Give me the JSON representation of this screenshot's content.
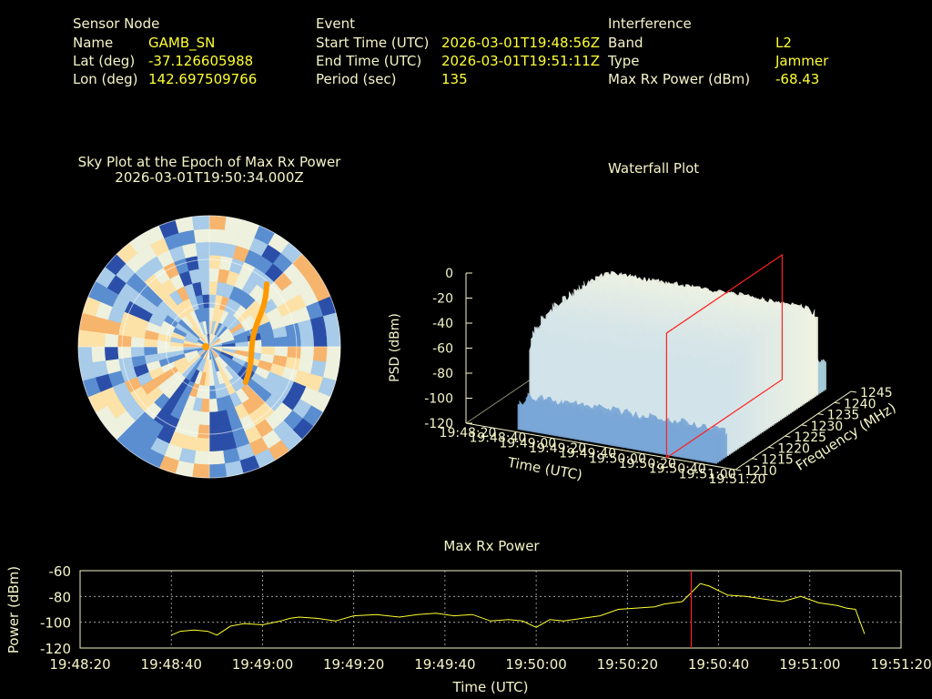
{
  "info": {
    "sensor": {
      "heading": "Sensor Node",
      "rows": [
        {
          "label": "Name",
          "value": "GAMB_SN"
        },
        {
          "label": "Lat (deg)",
          "value": "-37.126605988"
        },
        {
          "label": "Lon (deg)",
          "value": "142.697509766"
        }
      ]
    },
    "event": {
      "heading": "Event",
      "rows": [
        {
          "label": "Start Time (UTC)",
          "value": "2026-03-01T19:48:56Z"
        },
        {
          "label": "End Time (UTC)",
          "value": "2026-03-01T19:51:11Z"
        },
        {
          "label": "Period (sec)",
          "value": "135"
        }
      ]
    },
    "interference": {
      "heading": "Interference",
      "rows": [
        {
          "label": "Band",
          "value": "L2"
        },
        {
          "label": "Type",
          "value": "Jammer"
        },
        {
          "label": "Max Rx Power (dBm)",
          "value": "-68.43"
        }
      ]
    }
  },
  "colors": {
    "background": "#000000",
    "text": "#f5f5c8",
    "value": "#ffff33",
    "trace": "#ffff33",
    "marker": "#ff2020",
    "track": "#ff9900"
  },
  "chart_data": [
    {
      "type": "heatmap",
      "title": "Sky Plot at the Epoch of Max Rx Power",
      "subtitle": "2026-03-01T19:50:34.000Z",
      "projection": "polar",
      "colormap": [
        "#2b4fa8",
        "#5b8ed0",
        "#a7cbe8",
        "#eef1dd",
        "#fde2a8",
        "#f7b46c"
      ],
      "highlight_track_color": "#ff9900"
    },
    {
      "type": "area",
      "title": "Waterfall Plot",
      "zlabel": "PSD (dBm)",
      "xlabel": "Time (UTC)",
      "ylabel": "Frequency (MHz)",
      "z_ticks": [
        "0",
        "-20",
        "-40",
        "-60",
        "-80",
        "-100",
        "-120"
      ],
      "zlim": [
        -120,
        0
      ],
      "time_ticks": [
        "19:48:20",
        "19:48:40",
        "19:49:00",
        "19:49:20",
        "19:49:40",
        "19:50:00",
        "19:50:20",
        "19:50:40",
        "19:51:00",
        "19:51:20"
      ],
      "freq_ticks": [
        "1210",
        "1215",
        "1220",
        "1225",
        "1230",
        "1235",
        "1240",
        "1245"
      ],
      "freq_lim": [
        1210,
        1245
      ],
      "marker_time": "19:50:34",
      "plateau_freq": [
        1214,
        1242
      ],
      "plateau_psd": -25,
      "floor_psd": -95
    },
    {
      "type": "line",
      "title": "Max Rx Power",
      "xlabel": "Time (UTC)",
      "ylabel": "Power (dBm)",
      "x_ticks": [
        "19:48:20",
        "19:48:40",
        "19:49:00",
        "19:49:20",
        "19:49:40",
        "19:50:00",
        "19:50:20",
        "19:50:40",
        "19:51:00",
        "19:51:20"
      ],
      "y_ticks": [
        "-60",
        "-80",
        "-100",
        "-120"
      ],
      "xlim_sec": [
        0,
        180
      ],
      "ylim": [
        -120,
        -60
      ],
      "grid": true,
      "marker_sec": 134,
      "series": [
        {
          "x": [
            20,
            22,
            25,
            28,
            30,
            33,
            36,
            40,
            44,
            46,
            48,
            52,
            56,
            60,
            65,
            70,
            74,
            78,
            82,
            86,
            90,
            94,
            97,
            100,
            103,
            106,
            110,
            114,
            118,
            122,
            126,
            128,
            130,
            132,
            134,
            136,
            138,
            142,
            146,
            150,
            154,
            158,
            162,
            166,
            168,
            170,
            172
          ],
          "y": [
            -110,
            -107,
            -106,
            -107,
            -110,
            -103,
            -101,
            -102,
            -99,
            -97,
            -96,
            -97,
            -99,
            -95,
            -94,
            -96,
            -94,
            -93,
            -95,
            -94,
            -99,
            -98,
            -99,
            -104,
            -98,
            -99,
            -97,
            -95,
            -90,
            -89,
            -88,
            -86,
            -85,
            -84,
            -77,
            -70,
            -72,
            -79,
            -80,
            -82,
            -84,
            -80,
            -85,
            -87,
            -89,
            -90,
            -109
          ]
        }
      ]
    }
  ]
}
